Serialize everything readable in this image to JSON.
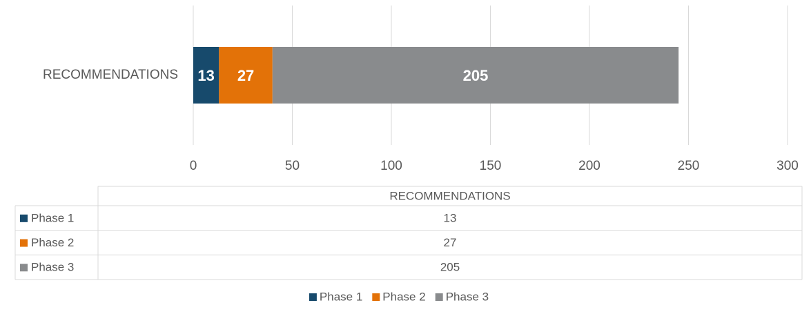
{
  "chart_data": {
    "type": "stacked_bar_horizontal",
    "categories": [
      "RECOMMENDATIONS"
    ],
    "series": [
      {
        "name": "Phase 1",
        "color": "#174a6c",
        "values": [
          13
        ]
      },
      {
        "name": "Phase 2",
        "color": "#e37208",
        "values": [
          27
        ]
      },
      {
        "name": "Phase 3",
        "color": "#898b8d",
        "values": [
          205
        ]
      }
    ],
    "xlim": [
      0,
      300
    ],
    "xticks": [
      0,
      50,
      100,
      150,
      200,
      250,
      300
    ],
    "grid": true,
    "data_table": true,
    "legend": "bottom"
  }
}
